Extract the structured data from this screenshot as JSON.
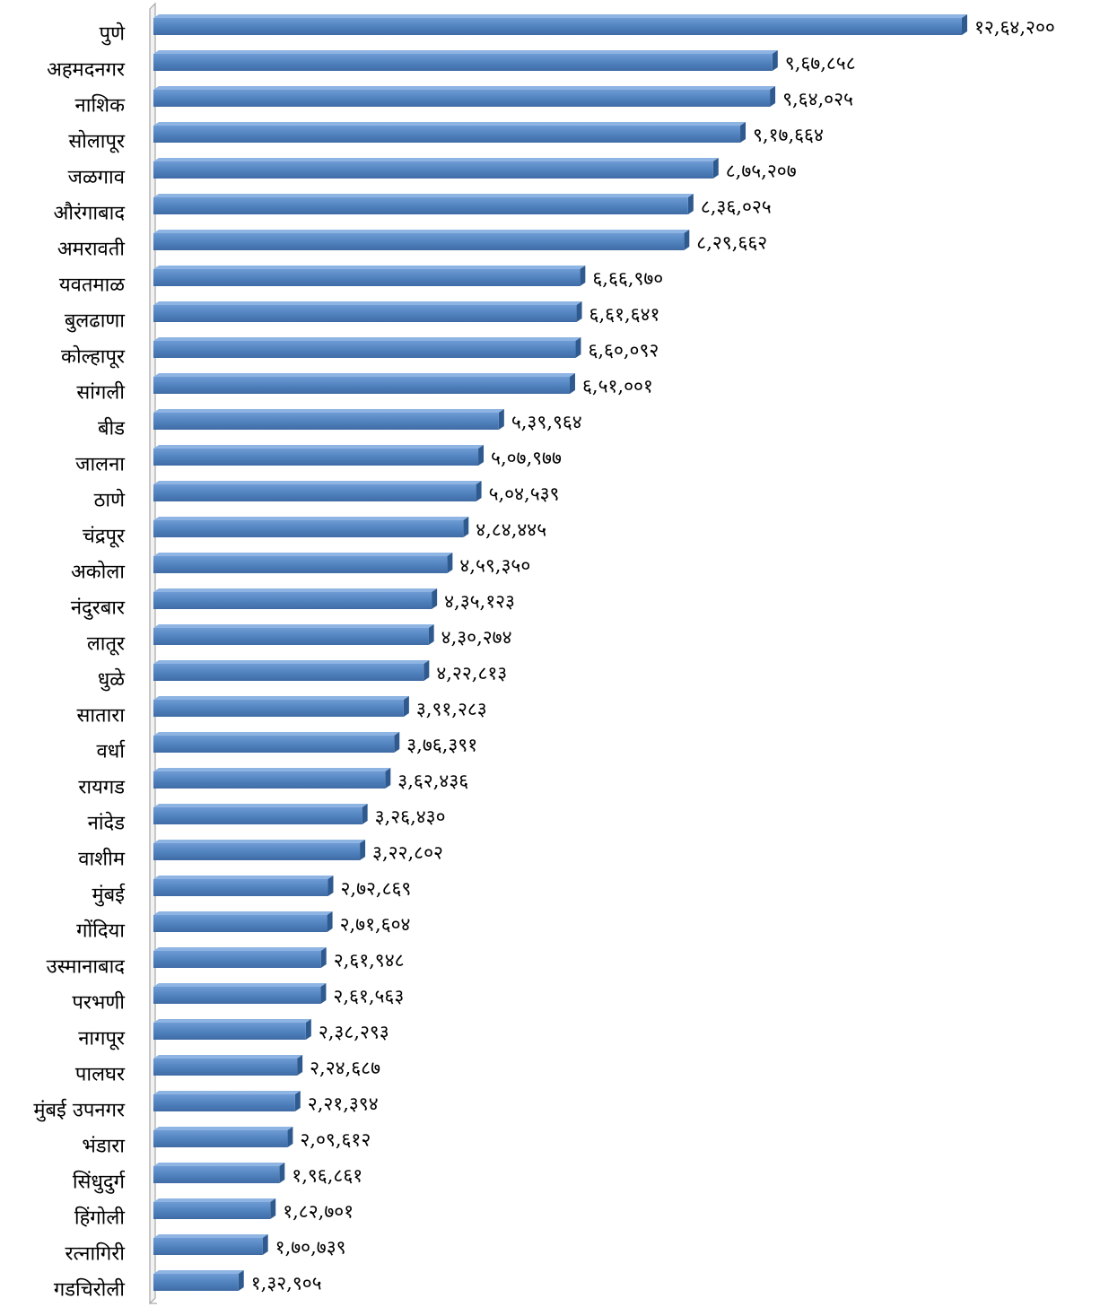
{
  "chart_data": {
    "type": "bar",
    "orientation": "horizontal",
    "style": "3d",
    "bar_color": "#4F81BD",
    "categories": [
      "पुणे",
      "अहमदनगर",
      "नाशिक",
      "सोलापूर",
      "जळगाव",
      "औरंगाबाद",
      "अमरावती",
      "यवतमाळ",
      "बुलढाणा",
      "कोल्हापूर",
      "सांगली",
      "बीड",
      "जालना",
      "ठाणे",
      "चंद्रपूर",
      "अकोला",
      "नंदुरबार",
      "लातूर",
      "धुळे",
      "सातारा",
      "वर्धा",
      "रायगड",
      "नांदेड",
      "वाशीम",
      "मुंबई",
      "गोंदिया",
      "उस्मानाबाद",
      "परभणी",
      "नागपूर",
      "पालघर",
      "मुंबई उपनगर",
      "भंडारा",
      "सिंधुदुर्ग",
      "हिंगोली",
      "रत्नागिरी",
      "गडचिरोली"
    ],
    "values": [
      1264200,
      967858,
      964025,
      917664,
      875207,
      836025,
      829662,
      666970,
      661641,
      660092,
      651001,
      539964,
      507977,
      504539,
      484445,
      459350,
      435123,
      430274,
      422813,
      391283,
      376391,
      362436,
      326430,
      322802,
      272869,
      271604,
      261948,
      261563,
      238293,
      224687,
      221394,
      209612,
      196861,
      182701,
      170739,
      132905
    ],
    "value_labels": [
      "१२,६४,२००",
      "९,६७,८५८",
      "९,६४,०२५",
      "९,१७,६६४",
      "८,७५,२०७",
      "८,३६,०२५",
      "८,२९,६६२",
      "६,६६,९७०",
      "६,६१,६४१",
      "६,६०,०९२",
      "६,५१,००१",
      "५,३९,९६४",
      "५,०७,९७७",
      "५,०४,५३९",
      "४,८४,४४५",
      "४,५९,३५०",
      "४,३५,१२३",
      "४,३०,२७४",
      "४,२२,८१३",
      "३,९१,२८३",
      "३,७६,३९१",
      "३,६२,४३६",
      "३,२६,४३०",
      "३,२२,८०२",
      "२,७२,८६९",
      "२,७१,६०४",
      "२,६१,९४८",
      "२,६१,५६३",
      "२,३८,२९३",
      "२,२४,६८७",
      "२,२१,३९४",
      "२,०९,६१२",
      "१,९६,८६१",
      "१,८२,७०१",
      "१,७०,७३९",
      "१,३२,९०५"
    ],
    "xlim": [
      0,
      1264200
    ],
    "grid": false,
    "legend": false
  }
}
